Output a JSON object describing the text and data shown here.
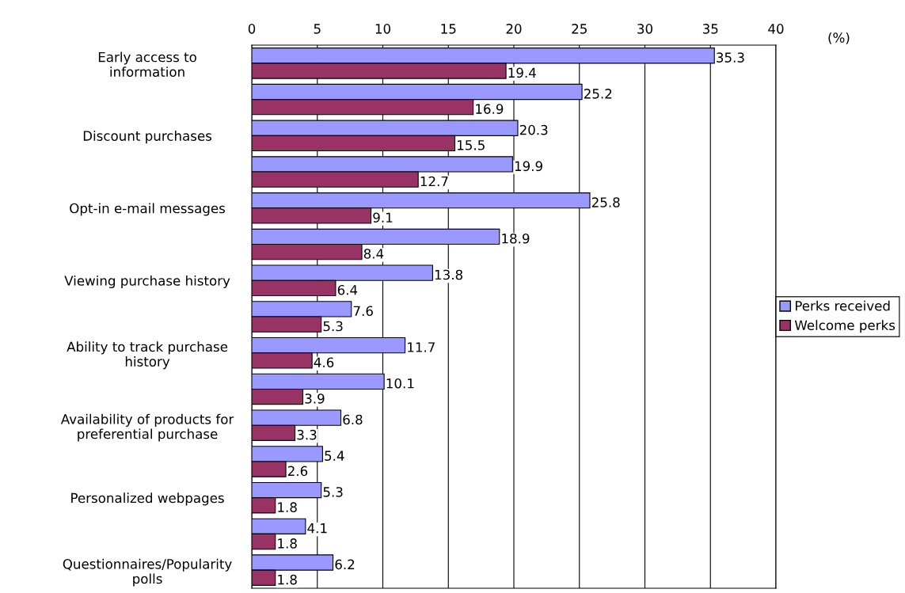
{
  "chart_data": {
    "type": "bar",
    "orientation": "horizontal",
    "xlabel": "(%)",
    "categories": [
      "Early access to\ninformation",
      null,
      "Discount purchases",
      null,
      "Opt-in e-mail messages",
      null,
      "Viewing purchase history",
      null,
      "Ability to track purchase\nhistory",
      null,
      "Availability of products for\npreferential purchase",
      null,
      "Personalized webpages",
      null,
      "Questionnaires/Popularity\npolls"
    ],
    "series": [
      {
        "name": "Perks received",
        "color": "#9999ff",
        "values": [
          35.3,
          25.2,
          20.3,
          19.9,
          25.8,
          18.9,
          13.8,
          7.6,
          11.7,
          10.1,
          6.8,
          5.4,
          5.3,
          4.1,
          6.2
        ]
      },
      {
        "name": "Welcome perks",
        "color": "#993366",
        "values": [
          19.4,
          16.9,
          15.5,
          12.7,
          9.1,
          8.4,
          6.4,
          5.3,
          4.6,
          3.9,
          3.3,
          2.6,
          1.8,
          1.8,
          1.8
        ]
      }
    ],
    "xlim": [
      0,
      40
    ],
    "xticks": [
      0,
      5,
      10,
      15,
      20,
      25,
      30,
      35,
      40
    ],
    "grid": "x",
    "legend": "right",
    "data_labels": true
  }
}
